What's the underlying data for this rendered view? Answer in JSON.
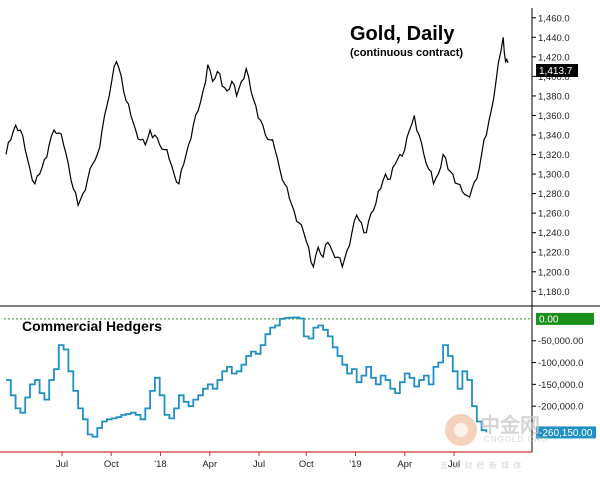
{
  "chart_data": [
    {
      "type": "line",
      "title": "Gold, Daily",
      "subtitle": "(continuous contract)",
      "x_tick_labels": [
        "Jul",
        "Oct",
        "'18",
        "Apr",
        "Jul",
        "Oct",
        "'19",
        "Apr",
        "Jul"
      ],
      "y_tick_labels": [
        "1,180.0",
        "1,200.0",
        "1,220.0",
        "1,240.0",
        "1,260.0",
        "1,280.0",
        "1,300.0",
        "1,320.0",
        "1,340.0",
        "1,360.0",
        "1,380.0",
        "1,400.0",
        "1,420.0",
        "1,440.0",
        "1,460.0"
      ],
      "ylim": [
        1167,
        1470
      ],
      "last_value_label": "1,413.7",
      "grid": false,
      "series": [
        {
          "color": "#000000",
          "values": [
            [
              0,
              1320
            ],
            [
              2,
              1335
            ],
            [
              4,
              1350
            ],
            [
              6,
              1345
            ],
            [
              8,
              1325
            ],
            [
              10,
              1305
            ],
            [
              12,
              1290
            ],
            [
              14,
              1300
            ],
            [
              16,
              1315
            ],
            [
              18,
              1330
            ],
            [
              20,
              1345
            ],
            [
              22,
              1342
            ],
            [
              24,
              1330
            ],
            [
              26,
              1310
            ],
            [
              28,
              1285
            ],
            [
              30,
              1268
            ],
            [
              32,
              1280
            ],
            [
              34,
              1295
            ],
            [
              36,
              1310
            ],
            [
              38,
              1320
            ],
            [
              40,
              1345
            ],
            [
              42,
              1370
            ],
            [
              44,
              1395
            ],
            [
              46,
              1415
            ],
            [
              48,
              1400
            ],
            [
              50,
              1375
            ],
            [
              52,
              1360
            ],
            [
              54,
              1345
            ],
            [
              56,
              1335
            ],
            [
              58,
              1330
            ],
            [
              60,
              1345
            ],
            [
              62,
              1340
            ],
            [
              64,
              1330
            ],
            [
              66,
              1325
            ],
            [
              68,
              1315
            ],
            [
              70,
              1300
            ],
            [
              72,
              1290
            ],
            [
              74,
              1310
            ],
            [
              76,
              1330
            ],
            [
              78,
              1350
            ],
            [
              80,
              1365
            ],
            [
              82,
              1385
            ],
            [
              84,
              1412
            ],
            [
              86,
              1395
            ],
            [
              88,
              1405
            ],
            [
              90,
              1390
            ],
            [
              92,
              1385
            ],
            [
              94,
              1395
            ],
            [
              96,
              1380
            ],
            [
              98,
              1395
            ],
            [
              100,
              1408
            ],
            [
              102,
              1385
            ],
            [
              104,
              1370
            ],
            [
              106,
              1355
            ],
            [
              108,
              1340
            ],
            [
              110,
              1335
            ],
            [
              112,
              1325
            ],
            [
              114,
              1305
            ],
            [
              116,
              1290
            ],
            [
              118,
              1275
            ],
            [
              120,
              1262
            ],
            [
              122,
              1250
            ],
            [
              124,
              1240
            ],
            [
              126,
              1225
            ],
            [
              128,
              1205
            ],
            [
              130,
              1225
            ],
            [
              132,
              1215
            ],
            [
              134,
              1230
            ],
            [
              136,
              1220
            ],
            [
              138,
              1215
            ],
            [
              140,
              1205
            ],
            [
              142,
              1222
            ],
            [
              144,
              1240
            ],
            [
              146,
              1258
            ],
            [
              148,
              1250
            ],
            [
              150,
              1240
            ],
            [
              152,
              1260
            ],
            [
              154,
              1270
            ],
            [
              156,
              1285
            ],
            [
              158,
              1300
            ],
            [
              160,
              1295
            ],
            [
              162,
              1310
            ],
            [
              164,
              1320
            ],
            [
              166,
              1325
            ],
            [
              168,
              1345
            ],
            [
              170,
              1360
            ],
            [
              172,
              1340
            ],
            [
              174,
              1320
            ],
            [
              176,
              1305
            ],
            [
              178,
              1290
            ],
            [
              180,
              1300
            ],
            [
              182,
              1320
            ],
            [
              184,
              1305
            ],
            [
              186,
              1300
            ],
            [
              188,
              1290
            ],
            [
              190,
              1282
            ],
            [
              192,
              1278
            ],
            [
              194,
              1285
            ],
            [
              196,
              1295
            ],
            [
              198,
              1320
            ],
            [
              200,
              1340
            ],
            [
              202,
              1365
            ],
            [
              204,
              1395
            ],
            [
              206,
              1425
            ],
            [
              207,
              1440
            ],
            [
              208,
              1415
            ],
            [
              209,
              1413.7
            ]
          ]
        }
      ]
    },
    {
      "type": "line",
      "title": "",
      "panel_label": "Commercial Hedgers",
      "x_tick_labels": [
        "Jul",
        "Oct",
        "'18",
        "Apr",
        "Jul",
        "Oct",
        "'19",
        "Apr",
        "Jul"
      ],
      "y_tick_labels": [
        "-50,000.00",
        "-100,000.0",
        "-150,000.0",
        "-200,000.0"
      ],
      "ylim": [
        -305000,
        25000
      ],
      "zero_label": "0.00",
      "last_value_label": "-260,150.00",
      "reference_line": 0,
      "grid": false,
      "series": [
        {
          "color": "#1f8fc4",
          "values": [
            [
              0,
              -140000
            ],
            [
              2,
              -175000
            ],
            [
              4,
              -205000
            ],
            [
              6,
              -215000
            ],
            [
              8,
              -180000
            ],
            [
              10,
              -150000
            ],
            [
              12,
              -140000
            ],
            [
              14,
              -170000
            ],
            [
              16,
              -185000
            ],
            [
              18,
              -140000
            ],
            [
              20,
              -115000
            ],
            [
              22,
              -60000
            ],
            [
              24,
              -70000
            ],
            [
              26,
              -120000
            ],
            [
              28,
              -165000
            ],
            [
              30,
              -205000
            ],
            [
              32,
              -230000
            ],
            [
              34,
              -265000
            ],
            [
              36,
              -270000
            ],
            [
              38,
              -250000
            ],
            [
              40,
              -235000
            ],
            [
              42,
              -230000
            ],
            [
              44,
              -228000
            ],
            [
              46,
              -225000
            ],
            [
              48,
              -220000
            ],
            [
              50,
              -218000
            ],
            [
              52,
              -215000
            ],
            [
              54,
              -220000
            ],
            [
              56,
              -230000
            ],
            [
              58,
              -205000
            ],
            [
              60,
              -165000
            ],
            [
              62,
              -135000
            ],
            [
              64,
              -175000
            ],
            [
              66,
              -220000
            ],
            [
              68,
              -228000
            ],
            [
              70,
              -205000
            ],
            [
              72,
              -175000
            ],
            [
              74,
              -190000
            ],
            [
              76,
              -200000
            ],
            [
              78,
              -185000
            ],
            [
              80,
              -175000
            ],
            [
              82,
              -160000
            ],
            [
              84,
              -150000
            ],
            [
              86,
              -160000
            ],
            [
              88,
              -140000
            ],
            [
              90,
              -120000
            ],
            [
              92,
              -110000
            ],
            [
              94,
              -125000
            ],
            [
              96,
              -120000
            ],
            [
              98,
              -105000
            ],
            [
              100,
              -85000
            ],
            [
              102,
              -75000
            ],
            [
              104,
              -80000
            ],
            [
              106,
              -60000
            ],
            [
              108,
              -35000
            ],
            [
              110,
              -20000
            ],
            [
              112,
              -15000
            ],
            [
              114,
              0
            ],
            [
              116,
              2000
            ],
            [
              118,
              3000
            ],
            [
              120,
              3500
            ],
            [
              122,
              1000
            ],
            [
              124,
              -40000
            ],
            [
              126,
              -45000
            ],
            [
              128,
              -20000
            ],
            [
              130,
              -15000
            ],
            [
              132,
              -25000
            ],
            [
              134,
              -40000
            ],
            [
              136,
              -65000
            ],
            [
              138,
              -85000
            ],
            [
              140,
              -105000
            ],
            [
              142,
              -125000
            ],
            [
              144,
              -115000
            ],
            [
              146,
              -145000
            ],
            [
              148,
              -130000
            ],
            [
              150,
              -110000
            ],
            [
              152,
              -135000
            ],
            [
              154,
              -150000
            ],
            [
              156,
              -130000
            ],
            [
              158,
              -140000
            ],
            [
              160,
              -160000
            ],
            [
              162,
              -170000
            ],
            [
              164,
              -145000
            ],
            [
              166,
              -125000
            ],
            [
              168,
              -135000
            ],
            [
              170,
              -155000
            ],
            [
              172,
              -140000
            ],
            [
              174,
              -130000
            ],
            [
              176,
              -150000
            ],
            [
              178,
              -110000
            ],
            [
              180,
              -100000
            ],
            [
              182,
              -60000
            ],
            [
              184,
              -85000
            ],
            [
              186,
              -120000
            ],
            [
              188,
              -160000
            ],
            [
              190,
              -120000
            ],
            [
              192,
              -140000
            ],
            [
              194,
              -200000
            ],
            [
              196,
              -235000
            ],
            [
              198,
              -255000
            ],
            [
              200,
              -260150
            ]
          ]
        }
      ]
    }
  ],
  "colors": {
    "price_line": "#000000",
    "hedger_line": "#1f8fc4",
    "zero_line": "#2e8b2e",
    "zero_tag": "#1a8f1a",
    "hedger_tag": "#1f8fc4",
    "price_tag": "#000000",
    "axis": "#cc3333"
  },
  "watermark": {
    "text": "中金网",
    "url": "CNGOLD.ORG",
    "tagline": "五 文 财 经 新 媒 体"
  }
}
